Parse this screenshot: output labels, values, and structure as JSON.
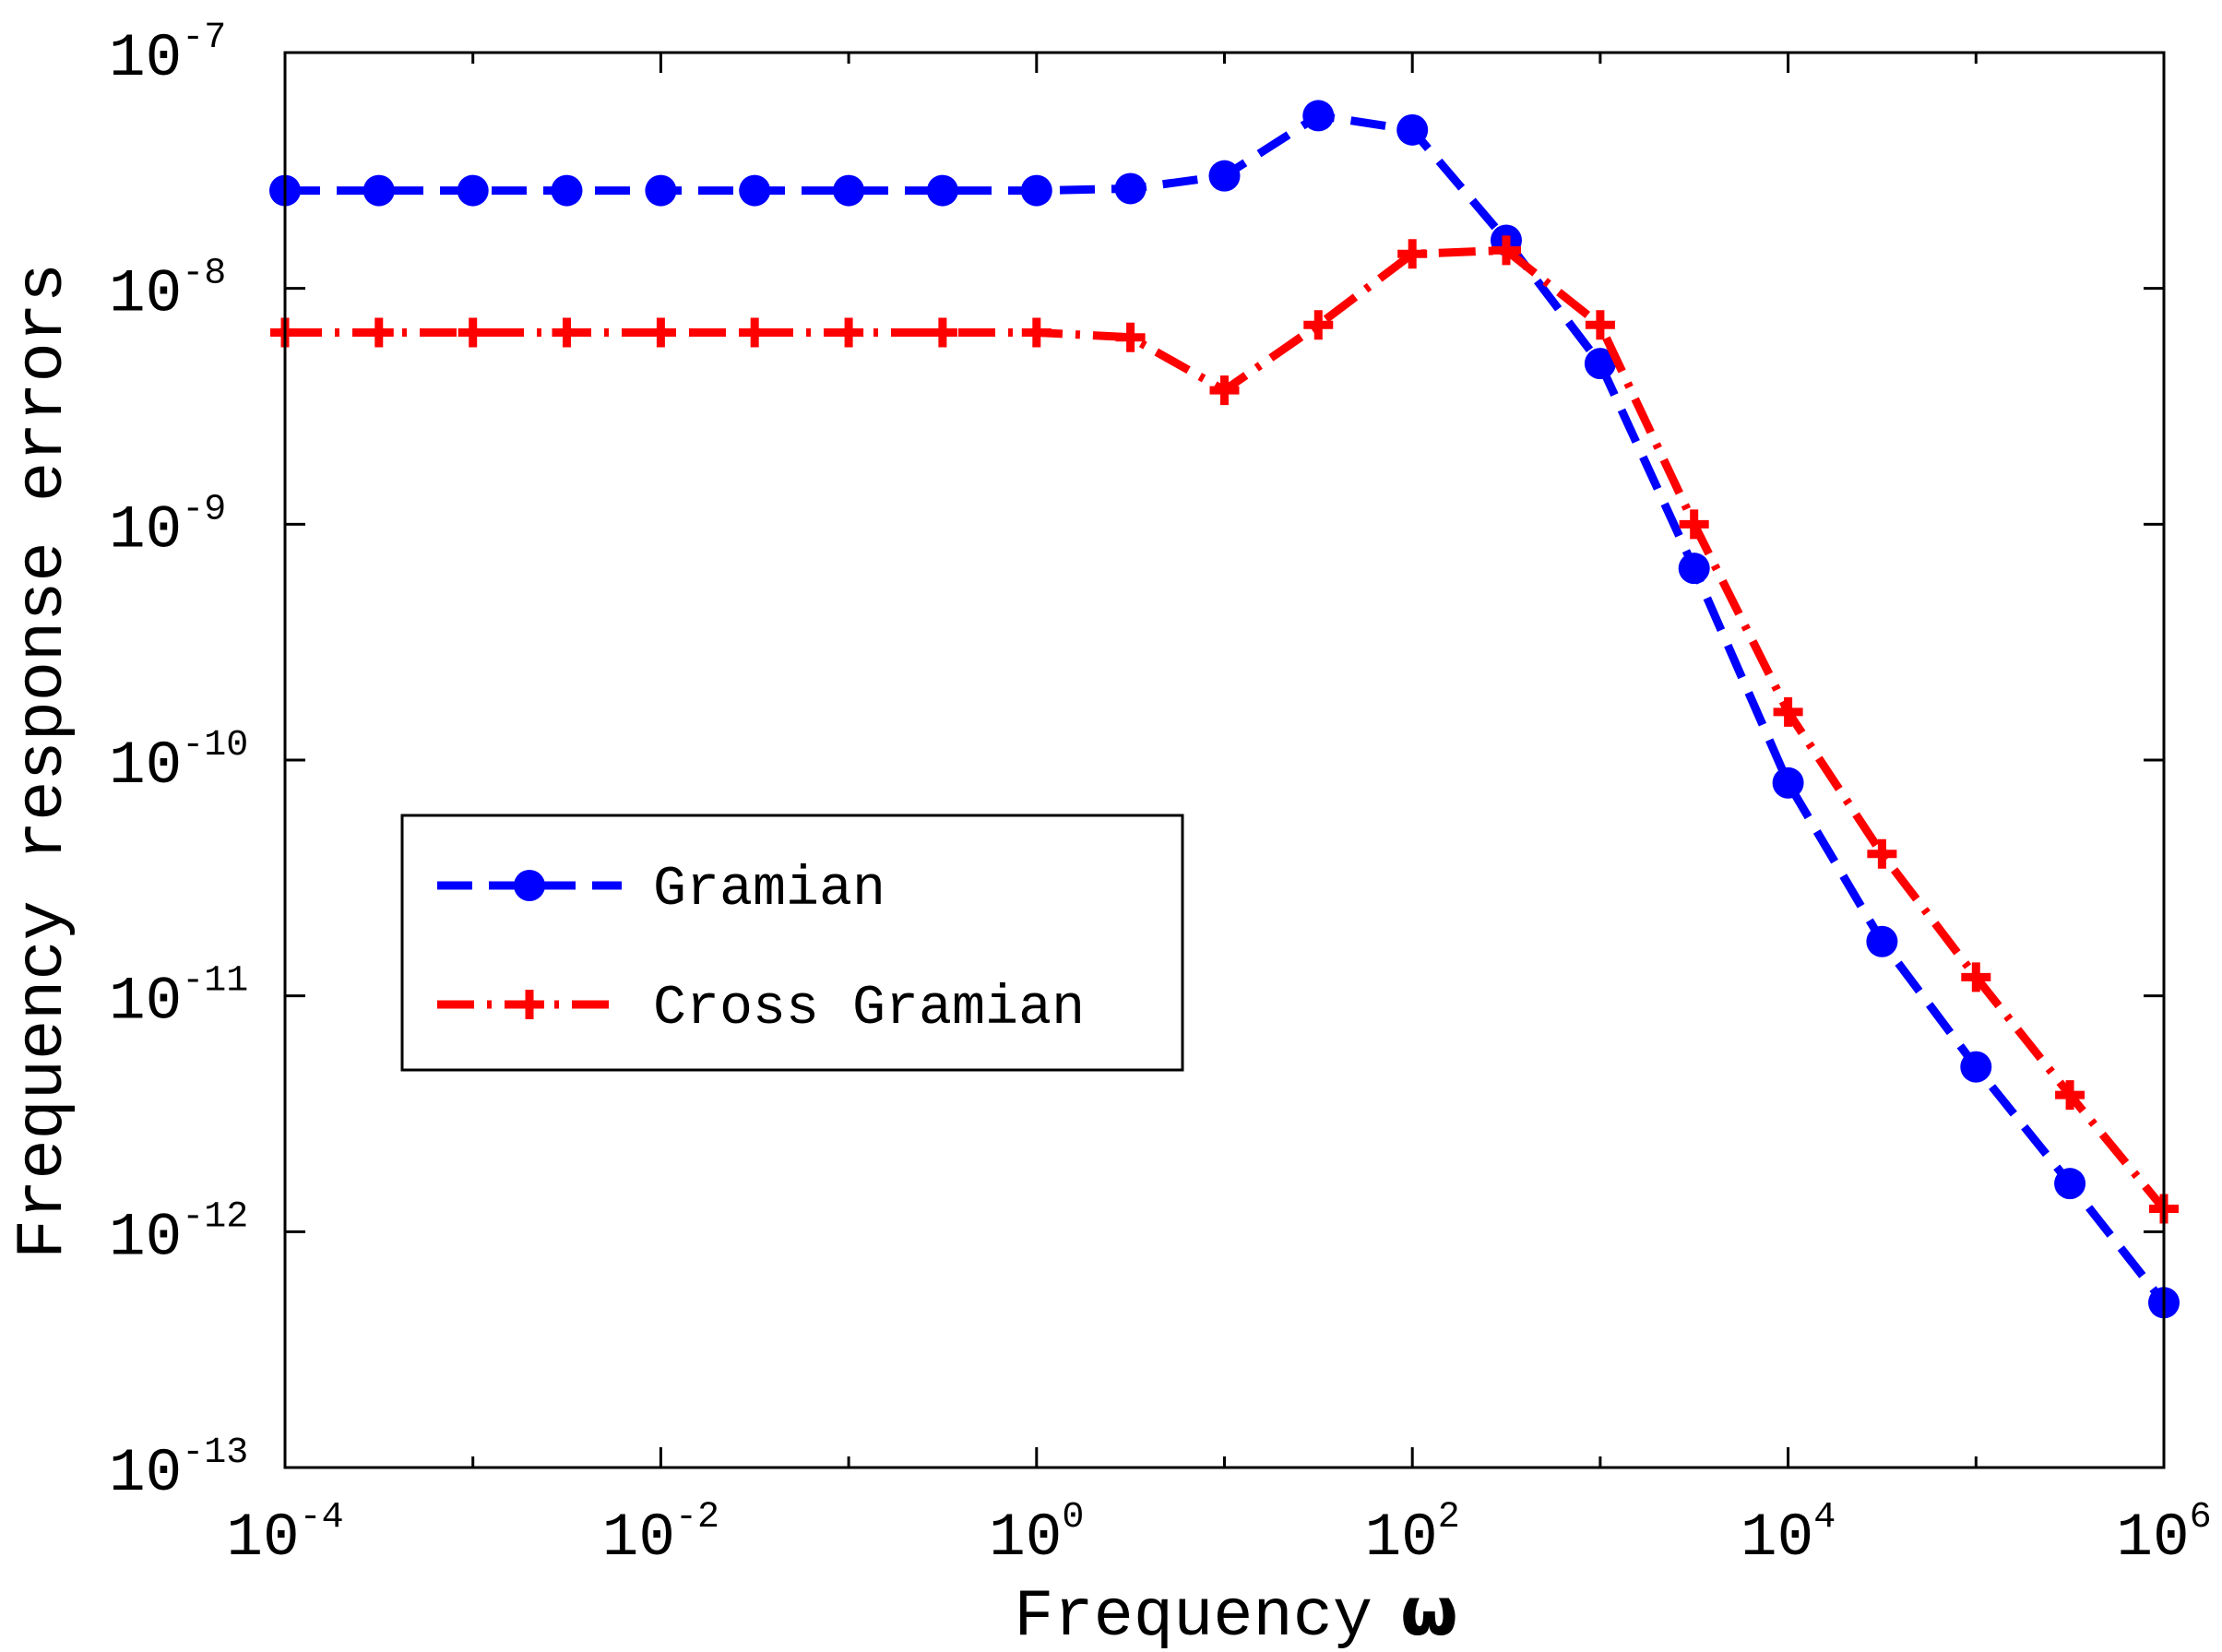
{
  "chart_data": {
    "type": "line",
    "xscale": "log",
    "yscale": "log",
    "title": "",
    "xlabel": "Frequency",
    "xlabel_symbol": "ω",
    "ylabel": "Frequency response errors",
    "xlim": [
      0.0001,
      1000000
    ],
    "ylim": [
      1e-13,
      1e-07
    ],
    "grid": false,
    "legend_position": "center-left",
    "x_ticks": [
      {
        "value": 0.0001,
        "base": "10",
        "exp": "-4"
      },
      {
        "value": 0.01,
        "base": "10",
        "exp": "-2"
      },
      {
        "value": 1,
        "base": "10",
        "exp": "0"
      },
      {
        "value": 100,
        "base": "10",
        "exp": "2"
      },
      {
        "value": 10000,
        "base": "10",
        "exp": "4"
      },
      {
        "value": 1000000,
        "base": "10",
        "exp": "6"
      }
    ],
    "y_ticks": [
      {
        "value": 1e-07,
        "base": "10",
        "exp": "-7"
      },
      {
        "value": 1e-08,
        "base": "10",
        "exp": "-8"
      },
      {
        "value": 1e-09,
        "base": "10",
        "exp": "-9"
      },
      {
        "value": 1e-10,
        "base": "10",
        "exp": "-10"
      },
      {
        "value": 1e-11,
        "base": "10",
        "exp": "-11"
      },
      {
        "value": 1e-12,
        "base": "10",
        "exp": "-12"
      },
      {
        "value": 1e-13,
        "base": "10",
        "exp": "-13"
      }
    ],
    "x": [
      0.0001,
      0.000316,
      0.001,
      0.00316,
      0.01,
      0.0316,
      0.1,
      0.316,
      1,
      3.16,
      10,
      31.6,
      100,
      316,
      1000,
      3160,
      10000,
      31600,
      100000,
      316000,
      1000000
    ],
    "series": [
      {
        "name": "Gramian",
        "color": "#0000ff",
        "marker": "circle",
        "line_style": "dashed",
        "values": [
          2.6e-08,
          2.6e-08,
          2.6e-08,
          2.6e-08,
          2.6e-08,
          2.6e-08,
          2.6e-08,
          2.6e-08,
          2.6e-08,
          2.65e-08,
          3e-08,
          5.4e-08,
          4.7e-08,
          1.6e-08,
          4.8e-09,
          6.5e-10,
          8e-11,
          1.7e-11,
          5e-12,
          1.6e-12,
          5e-13
        ]
      },
      {
        "name": "Cross Gramian",
        "color": "#ff0000",
        "marker": "plus",
        "line_style": "dash-dot",
        "values": [
          6.5e-09,
          6.5e-09,
          6.5e-09,
          6.5e-09,
          6.5e-09,
          6.5e-09,
          6.5e-09,
          6.5e-09,
          6.5e-09,
          6.2e-09,
          3.7e-09,
          7e-09,
          1.4e-08,
          1.45e-08,
          7e-09,
          1e-09,
          1.6e-10,
          4e-11,
          1.2e-11,
          3.8e-12,
          1.25e-12
        ]
      }
    ]
  }
}
